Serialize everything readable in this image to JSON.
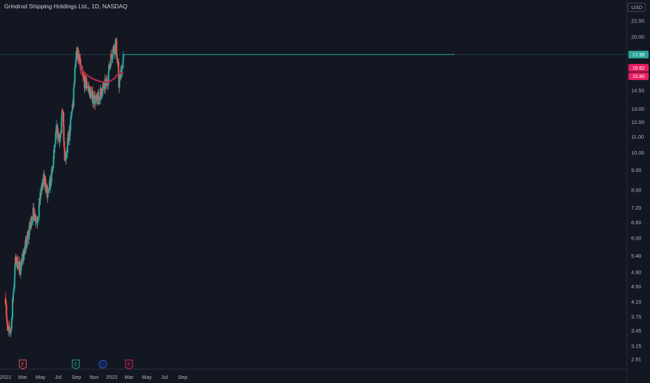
{
  "header": {
    "title": "Grindrod Shipping Holdings Ltd., 1D, NASDAQ",
    "currency": "USD"
  },
  "colors": {
    "background": "#131722",
    "up": "#26a69a",
    "down": "#ef5350",
    "ma": "#b2284f",
    "last_line": "#26a69a",
    "axis_text": "#b2b5be"
  },
  "chart_data": {
    "type": "candlestick",
    "title": "Grindrod Shipping Holdings Ltd., 1D, NASDAQ",
    "y_scale": "log",
    "ylim": [
      2.8,
      23
    ],
    "y_ticks": [
      "22.00",
      "20.00",
      "18.00",
      "16.00",
      "14.50",
      "13.00",
      "12.00",
      "11.00",
      "10.00",
      "9.00",
      "8.00",
      "7.20",
      "6.60",
      "6.00",
      "5.40",
      "4.90",
      "4.50",
      "4.10",
      "3.75",
      "3.45",
      "3.15",
      "2.91"
    ],
    "x_ticks": [
      "2021",
      "Mar",
      "May",
      "Jul",
      "Sep",
      "Nov",
      "2022",
      "Mar",
      "May",
      "Jul",
      "Sep"
    ],
    "price_path": [
      [
        "2021-01-01",
        4.2
      ],
      [
        "2021-01-08",
        3.4
      ],
      [
        "2021-01-20",
        3.5
      ],
      [
        "2021-02-05",
        5.3
      ],
      [
        "2021-02-20",
        5.0
      ],
      [
        "2021-03-05",
        5.5
      ],
      [
        "2021-03-20",
        6.1
      ],
      [
        "2021-04-05",
        7.0
      ],
      [
        "2021-04-20",
        6.7
      ],
      [
        "2021-05-05",
        8.1
      ],
      [
        "2021-05-15",
        8.6
      ],
      [
        "2021-05-25",
        7.6
      ],
      [
        "2021-06-10",
        8.9
      ],
      [
        "2021-06-25",
        11.4
      ],
      [
        "2021-07-10",
        10.8
      ],
      [
        "2021-07-15",
        13.3
      ],
      [
        "2021-07-24",
        9.5
      ],
      [
        "2021-08-10",
        11.5
      ],
      [
        "2021-08-22",
        13.8
      ],
      [
        "2021-09-01",
        18.5
      ],
      [
        "2021-09-10",
        17.4
      ],
      [
        "2021-09-25",
        15.4
      ],
      [
        "2021-10-10",
        14.9
      ],
      [
        "2021-10-25",
        14.0
      ],
      [
        "2021-11-10",
        13.6
      ],
      [
        "2021-11-25",
        14.4
      ],
      [
        "2021-12-15",
        15.2
      ],
      [
        "2022-01-01",
        18.2
      ],
      [
        "2022-01-15",
        19.2
      ],
      [
        "2022-01-25",
        15.0
      ],
      [
        "2022-02-10",
        17.5
      ]
    ],
    "events": [
      {
        "label": "E",
        "date": "2021-03-01",
        "color": "#ef5350"
      },
      {
        "label": "E",
        "date": "2021-08-30",
        "color": "#26a69a"
      },
      {
        "label": "D",
        "date": "2021-12-01",
        "color": "#2962ff"
      },
      {
        "label": "E",
        "date": "2022-03-01",
        "color": "#e91e63"
      }
    ],
    "price_labels": [
      {
        "value": "17.99",
        "color": "#26a69a"
      },
      {
        "value": "16.62",
        "color": "#e91e63"
      },
      {
        "value": "15.80",
        "color": "#e91e63"
      }
    ],
    "last_price": 17.99,
    "ma_series": [
      [
        "2021-09-05",
        17.4
      ],
      [
        "2021-09-20",
        16.4
      ],
      [
        "2021-10-10",
        15.85
      ],
      [
        "2021-11-01",
        15.5
      ],
      [
        "2021-11-25",
        15.3
      ],
      [
        "2021-12-20",
        15.25
      ],
      [
        "2022-01-10",
        15.6
      ],
      [
        "2022-01-25",
        16.1
      ],
      [
        "2022-02-10",
        16.1
      ]
    ],
    "grid": false
  }
}
